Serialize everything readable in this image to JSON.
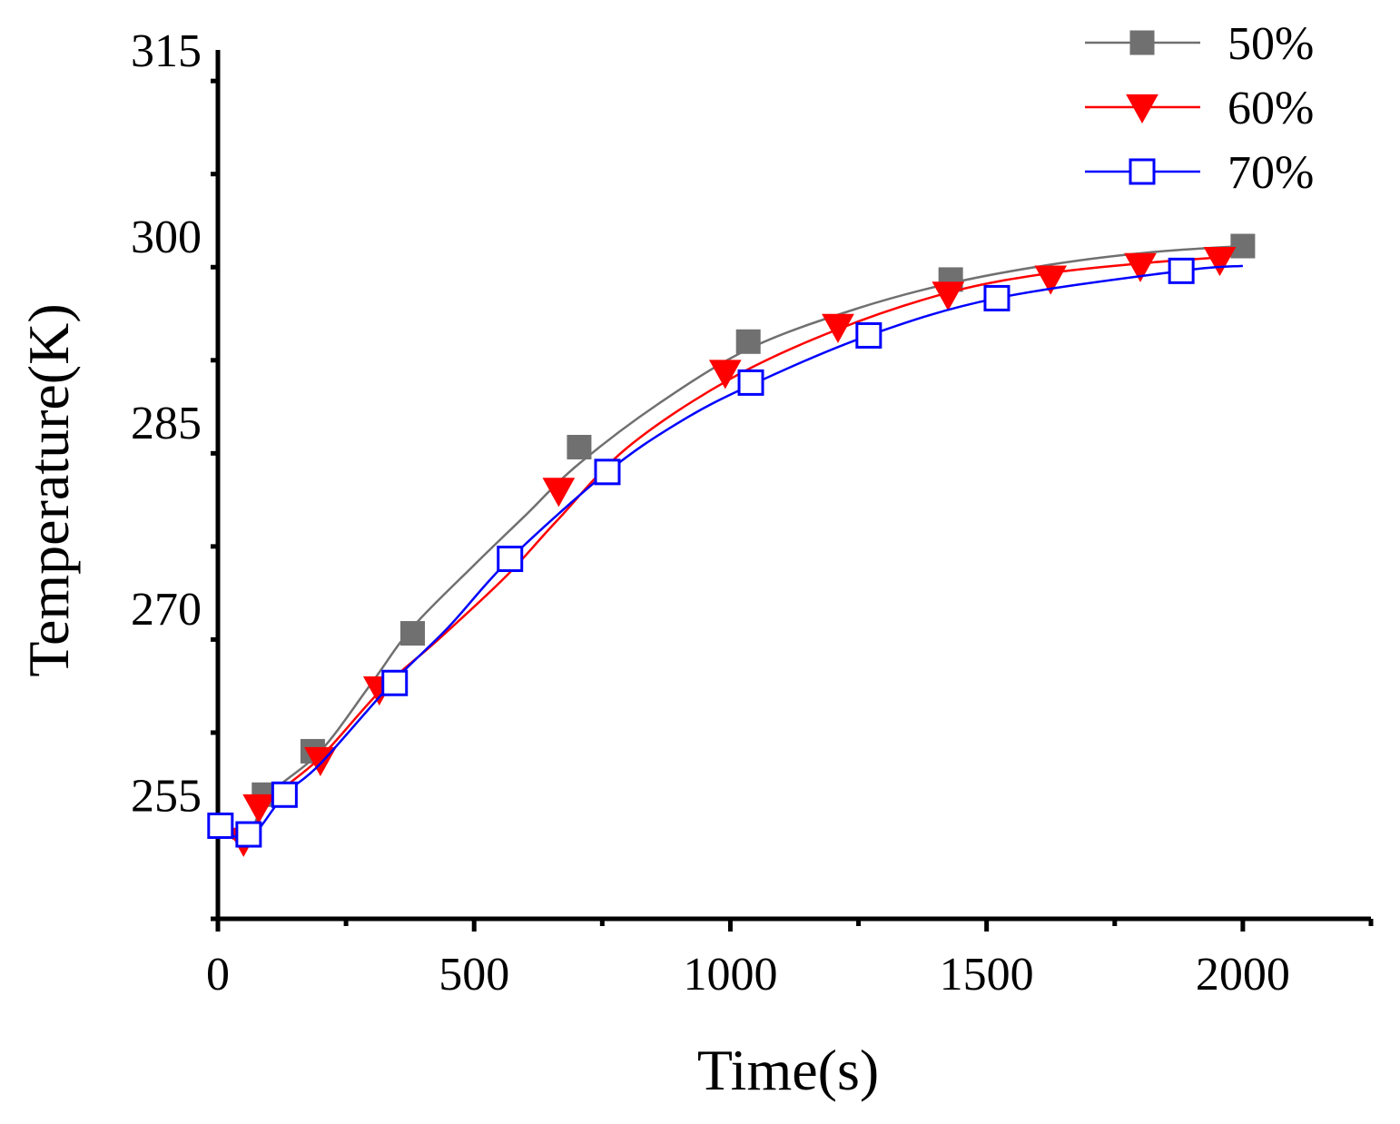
{
  "chart_data": {
    "type": "line",
    "title": "",
    "xlabel": "Time(s)",
    "ylabel": "Temperature(K)",
    "xlim": [
      0,
      2250
    ],
    "ylim": [
      245,
      315
    ],
    "xticks": [
      0,
      500,
      1000,
      1500,
      2000
    ],
    "yticks": [
      255,
      270,
      285,
      300,
      315
    ],
    "x_tick_labels": [
      "0",
      "500",
      "1000",
      "1500",
      "2000"
    ],
    "y_tick_labels": [
      "255",
      "270",
      "285",
      "300",
      "315"
    ],
    "legend_position": "top-right",
    "grid": false,
    "series": [
      {
        "name": "50%",
        "color": "#707070",
        "marker": "filled-square",
        "curve_x": [
          0,
          60,
          100,
          200,
          300,
          380,
          500,
          600,
          700,
          860,
          1040,
          1250,
          1440,
          1640,
          1820,
          2000
        ],
        "curve_y": [
          252.3,
          252,
          255,
          258.5,
          264,
          268.5,
          273.5,
          277.5,
          281.5,
          286.5,
          291,
          294.2,
          296.3,
          297.8,
          298.7,
          299.2
        ],
        "markers_x": [
          90,
          185,
          380,
          705,
          1035,
          1430,
          2000
        ],
        "markers_y": [
          255,
          258.5,
          268,
          283,
          291.5,
          296.5,
          299.2
        ]
      },
      {
        "name": "60%",
        "color": "#ff0000",
        "marker": "filled-triangle-down",
        "curve_x": [
          0,
          55,
          100,
          200,
          320,
          430,
          560,
          660,
          800,
          1000,
          1210,
          1430,
          1620,
          1800,
          1960
        ],
        "curve_y": [
          252.3,
          251.3,
          254.5,
          258,
          263.5,
          267.5,
          272.5,
          277,
          283,
          288.5,
          292.5,
          295.5,
          297,
          297.8,
          298.3
        ],
        "markers_x": [
          50,
          80,
          200,
          315,
          665,
          990,
          1210,
          1425,
          1625,
          1800,
          1955
        ],
        "markers_y": [
          251.3,
          254,
          257.8,
          263.5,
          279.5,
          289,
          292.7,
          295.3,
          296.6,
          297.6,
          298.1
        ]
      },
      {
        "name": "70%",
        "color": "#0000ff",
        "marker": "open-square",
        "curve_x": [
          0,
          60,
          130,
          200,
          340,
          450,
          570,
          760,
          900,
          1040,
          1270,
          1520,
          1880,
          2000
        ],
        "curve_y": [
          252.5,
          251.5,
          255,
          257.5,
          264,
          268.5,
          274,
          281,
          285,
          288,
          292,
          295,
          297.2,
          297.6
        ],
        "markers_x": [
          5,
          60,
          130,
          345,
          570,
          760,
          1040,
          1270,
          1520,
          1880
        ],
        "markers_y": [
          252.5,
          251.8,
          255,
          264,
          274,
          281,
          288.2,
          292,
          295,
          297.2
        ]
      }
    ]
  }
}
